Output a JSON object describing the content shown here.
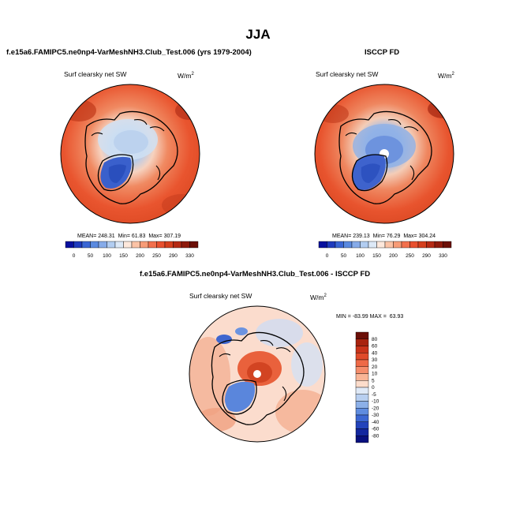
{
  "figure": {
    "title": "JJA"
  },
  "chart_data": [
    {
      "type": "heatmap",
      "projection": "north-polar-stereographic",
      "panel_title": "f.e15a6.FAMIPC5.ne0np4-VarMeshNH3.Club_Test.006 (yrs 1979-2004)",
      "variable": "Surf clearsky net SW",
      "units": "W/m",
      "units_exponent": "2",
      "stats": {
        "mean_label": "MEAN=",
        "mean": "248.31",
        "min_label": "Min=",
        "min": "61.83",
        "max_label": "Max=",
        "max": "307.19"
      },
      "colorbar": {
        "orientation": "horizontal",
        "levels": [
          "0",
          "50",
          "100",
          "150",
          "200",
          "250",
          "290",
          "330"
        ],
        "colors": [
          "#08109e",
          "#1f3bbd",
          "#3a66d4",
          "#5a8ae0",
          "#86abe9",
          "#b2cdf1",
          "#dde9f7",
          "#fde8dc",
          "#fbc3a6",
          "#f79c77",
          "#f2704d",
          "#e8512f",
          "#d5401e",
          "#b52a14",
          "#8e1a0c",
          "#6b0f07"
        ]
      }
    },
    {
      "type": "heatmap",
      "projection": "north-polar-stereographic",
      "panel_title": "ISCCP FD",
      "variable": "Surf clearsky net SW",
      "units": "W/m",
      "units_exponent": "2",
      "stats": {
        "mean_label": "MEAN=",
        "mean": "239.13",
        "min_label": "Min=",
        "min": "76.29",
        "max_label": "Max=",
        "max": "304.24"
      },
      "colorbar": {
        "orientation": "horizontal",
        "levels": [
          "0",
          "50",
          "100",
          "150",
          "200",
          "250",
          "290",
          "330"
        ],
        "colors": [
          "#08109e",
          "#1f3bbd",
          "#3a66d4",
          "#5a8ae0",
          "#86abe9",
          "#b2cdf1",
          "#dde9f7",
          "#fde8dc",
          "#fbc3a6",
          "#f79c77",
          "#f2704d",
          "#e8512f",
          "#d5401e",
          "#b52a14",
          "#8e1a0c",
          "#6b0f07"
        ]
      }
    },
    {
      "type": "heatmap",
      "projection": "north-polar-stereographic",
      "panel_title": "f.e15a6.FAMIPC5.ne0np4-VarMeshNH3.Club_Test.006 - ISCCP FD",
      "variable": "Surf clearsky net SW",
      "units": "W/m",
      "units_exponent": "2",
      "stats": {
        "min_label": "MIN =",
        "min": "-83.99",
        "max_label": "MAX =",
        "max": "63.93"
      },
      "colorbar": {
        "orientation": "vertical",
        "levels": [
          "80",
          "60",
          "40",
          "30",
          "20",
          "10",
          "5",
          "0",
          "-5",
          "-10",
          "-20",
          "-30",
          "-40",
          "-60",
          "-80"
        ],
        "colors": [
          "#6b0f07",
          "#a8230f",
          "#c9331a",
          "#e04a2a",
          "#ee6a47",
          "#f58d6b",
          "#f9b596",
          "#fcdccb",
          "#dfe9f7",
          "#b8cff0",
          "#8cb0e8",
          "#5f8cdf",
          "#3c67d2",
          "#2343bb",
          "#13279f",
          "#08107e"
        ]
      }
    }
  ]
}
